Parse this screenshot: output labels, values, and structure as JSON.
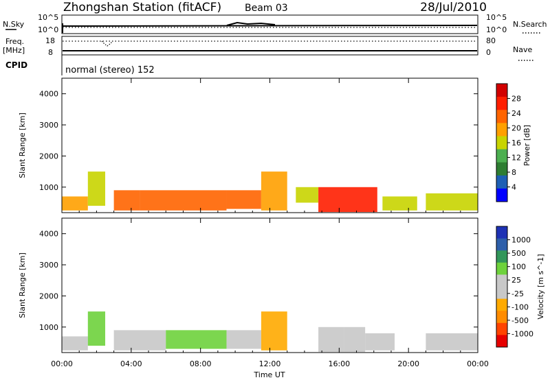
{
  "header": {
    "station": "Zhongshan Station (fitACF)",
    "beam": "Beam 03",
    "date": "28/Jul/2010"
  },
  "strip_panels": {
    "nsky": {
      "label": "N.Sky",
      "ticks": [
        "10^5",
        "10^0"
      ]
    },
    "nsearch": {
      "label": "N.Search",
      "ticks": [
        "10^5",
        "10^0"
      ]
    },
    "freq": {
      "label_line1": "Freq.",
      "label_line2": "[MHz]",
      "ticks": [
        "18",
        "8"
      ]
    },
    "nave": {
      "label": "Nave",
      "ticks": [
        "80",
        "0"
      ]
    },
    "cpid": {
      "label": "CPID",
      "value": "normal (stereo) 152"
    }
  },
  "colors": {
    "power": [
      "#0000ff",
      "#1e5fb4",
      "#2e7d32",
      "#4caf50",
      "#c8d400",
      "#ffa000",
      "#ff6400",
      "#ff1e00",
      "#d20000"
    ],
    "velocity": [
      "#e60000",
      "#ff4400",
      "#ff8c00",
      "#ffaa00",
      "#c8c8c8",
      "#c8c8c8",
      "#6ed23c",
      "#32965a",
      "#2d5faa",
      "#1e32b4"
    ]
  },
  "chart_data": [
    {
      "type": "heatmap",
      "title": "Power",
      "xlabel": "",
      "ylabel": "Slant Range [km]",
      "xlim": [
        "00:00",
        "24:00"
      ],
      "xticks": [
        "00:00",
        "04:00",
        "08:00",
        "12:00",
        "16:00",
        "20:00",
        "00:00"
      ],
      "ylim": [
        180,
        4500
      ],
      "yticks": [
        1000,
        2000,
        3000,
        4000
      ],
      "colorbar": {
        "label": "Power [dB]",
        "ticks": [
          "4",
          "8",
          "12",
          "16",
          "20",
          "24",
          "28"
        ],
        "range": [
          0,
          30
        ]
      },
      "echo_regions": [
        {
          "t_start": 0.0,
          "t_end": 1.5,
          "r_low": 250,
          "r_high": 700,
          "level": 18
        },
        {
          "t_start": 1.5,
          "t_end": 2.5,
          "r_low": 400,
          "r_high": 1500,
          "level": 14
        },
        {
          "t_start": 3.0,
          "t_end": 4.5,
          "r_low": 250,
          "r_high": 900,
          "level": 20
        },
        {
          "t_start": 4.5,
          "t_end": 9.5,
          "r_low": 250,
          "r_high": 900,
          "level": 22
        },
        {
          "t_start": 9.5,
          "t_end": 11.5,
          "r_low": 300,
          "r_high": 900,
          "level": 20
        },
        {
          "t_start": 11.5,
          "t_end": 13.0,
          "r_low": 250,
          "r_high": 1500,
          "level": 18
        },
        {
          "t_start": 13.5,
          "t_end": 14.8,
          "r_low": 500,
          "r_high": 1000,
          "level": 14
        },
        {
          "t_start": 14.8,
          "t_end": 18.2,
          "r_low": 200,
          "r_high": 1000,
          "level": 25
        },
        {
          "t_start": 18.5,
          "t_end": 20.5,
          "r_low": 250,
          "r_high": 700,
          "level": 16
        },
        {
          "t_start": 21.0,
          "t_end": 24.0,
          "r_low": 250,
          "r_high": 800,
          "level": 16
        }
      ]
    },
    {
      "type": "heatmap",
      "title": "Velocity",
      "xlabel": "Time UT",
      "ylabel": "Slant Range [km]",
      "xlim": [
        "00:00",
        "24:00"
      ],
      "xticks": [
        "00:00",
        "04:00",
        "08:00",
        "12:00",
        "16:00",
        "20:00",
        "00:00"
      ],
      "ylim": [
        180,
        4500
      ],
      "yticks": [
        1000,
        2000,
        3000,
        4000
      ],
      "colorbar": {
        "label": "Velocity [m s^-1]",
        "ticks": [
          "1000",
          "500",
          "100",
          "25",
          "-25",
          "-100",
          "-500",
          "-1000"
        ],
        "range": [
          -1200,
          1200
        ]
      },
      "echo_regions": [
        {
          "t_start": 0.0,
          "t_end": 1.5,
          "r_low": 250,
          "r_high": 700,
          "level": -150
        },
        {
          "t_start": 1.5,
          "t_end": 2.5,
          "r_low": 400,
          "r_high": 1500,
          "level": 300
        },
        {
          "t_start": 3.0,
          "t_end": 6.0,
          "r_low": 250,
          "r_high": 900,
          "level": -200
        },
        {
          "t_start": 6.0,
          "t_end": 9.5,
          "r_low": 300,
          "r_high": 900,
          "level": 400
        },
        {
          "t_start": 9.5,
          "t_end": 11.5,
          "r_low": 300,
          "r_high": 900,
          "level": 150
        },
        {
          "t_start": 11.5,
          "t_end": 13.0,
          "r_low": 250,
          "r_high": 1500,
          "level": -300
        },
        {
          "t_start": 14.8,
          "t_end": 16.3,
          "r_low": 200,
          "r_high": 1000,
          "level": -200
        },
        {
          "t_start": 16.3,
          "t_end": 17.5,
          "r_low": 200,
          "r_high": 1000,
          "level": 0
        },
        {
          "t_start": 17.5,
          "t_end": 19.2,
          "r_low": 250,
          "r_high": 800,
          "level": -200
        },
        {
          "t_start": 21.0,
          "t_end": 24.0,
          "r_low": 250,
          "r_high": 800,
          "level": -200
        }
      ]
    }
  ]
}
